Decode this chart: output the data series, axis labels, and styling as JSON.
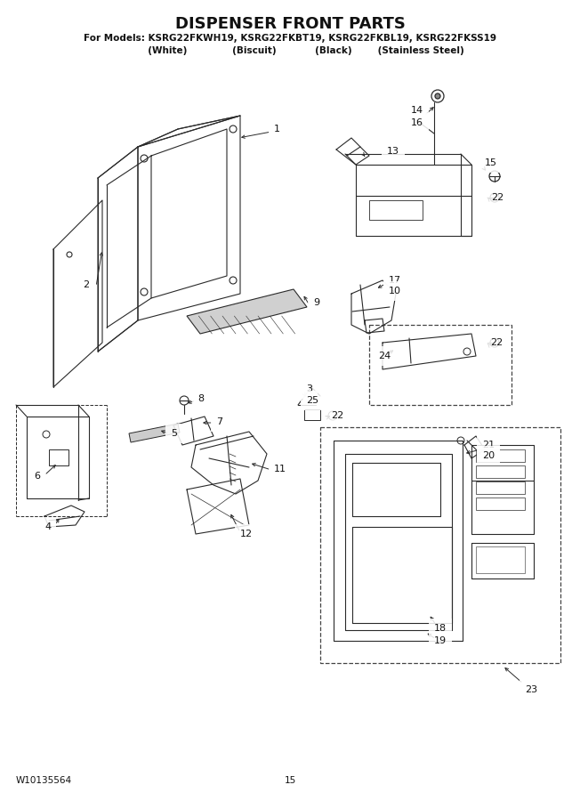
{
  "title": "DISPENSER FRONT PARTS",
  "subtitle_line1": "For Models: KSRG22FKWH19, KSRG22FKBT19, KSRG22FKBL19, KSRG22FKSS19",
  "subtitle_line2": "          (White)              (Biscuit)            (Black)        (Stainless Steel)",
  "footer_left": "W10135564",
  "footer_center": "15",
  "bg_color": "#ffffff",
  "fig_width": 6.52,
  "fig_height": 9.0,
  "title_fontsize": 13,
  "subtitle_fontsize": 7.5,
  "footer_fontsize": 7.5
}
